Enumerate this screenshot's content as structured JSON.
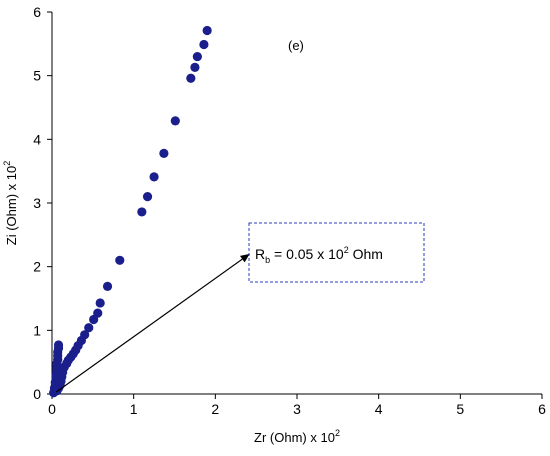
{
  "chart_data": {
    "type": "scatter",
    "panel_label": "(e)",
    "xlabel": {
      "text": "Zr (Ohm) x 10",
      "sup": "2"
    },
    "ylabel": {
      "text": "Zi (Ohm) x 10",
      "sup": "2"
    },
    "xlim": [
      0,
      6
    ],
    "ylim": [
      0,
      6
    ],
    "xticks": [
      "0",
      "1",
      "2",
      "3",
      "4",
      "5",
      "6"
    ],
    "yticks": [
      "0",
      "1",
      "2",
      "3",
      "4",
      "5",
      "6"
    ],
    "grid": false,
    "marker_color": "#1a1f8c",
    "annotation": {
      "main": "R",
      "sub": "b",
      "mid": " = 0.05 x 10",
      "sup": "2",
      "tail": " Ohm",
      "arrow_from": [
        0.05,
        0.03
      ],
      "arrow_to": [
        2.42,
        2.2
      ],
      "box_color": "#2b3fbf"
    },
    "series": [
      {
        "points": [
          [
            0.02,
            0.02
          ],
          [
            0.03,
            0.05
          ],
          [
            0.03,
            0.09
          ],
          [
            0.04,
            0.13
          ],
          [
            0.04,
            0.18
          ],
          [
            0.05,
            0.24
          ],
          [
            0.05,
            0.3
          ],
          [
            0.06,
            0.36
          ],
          [
            0.06,
            0.42
          ],
          [
            0.06,
            0.48
          ],
          [
            0.07,
            0.54
          ],
          [
            0.07,
            0.6
          ],
          [
            0.07,
            0.66
          ],
          [
            0.08,
            0.72
          ],
          [
            0.08,
            0.77
          ],
          [
            0.06,
            0.05
          ],
          [
            0.08,
            0.09
          ],
          [
            0.1,
            0.14
          ],
          [
            0.11,
            0.2
          ],
          [
            0.12,
            0.27
          ],
          [
            0.13,
            0.34
          ],
          [
            0.15,
            0.42
          ],
          [
            0.18,
            0.48
          ],
          [
            0.2,
            0.53
          ],
          [
            0.23,
            0.58
          ],
          [
            0.26,
            0.63
          ],
          [
            0.29,
            0.69
          ],
          [
            0.32,
            0.76
          ],
          [
            0.36,
            0.84
          ],
          [
            0.4,
            0.93
          ],
          [
            0.45,
            1.04
          ],
          [
            0.51,
            1.17
          ],
          [
            0.56,
            1.27
          ],
          [
            0.59,
            1.43
          ],
          [
            0.68,
            1.69
          ],
          [
            0.83,
            2.1
          ],
          [
            1.1,
            2.86
          ],
          [
            1.17,
            3.1
          ],
          [
            1.25,
            3.41
          ],
          [
            1.37,
            3.78
          ],
          [
            1.51,
            4.29
          ],
          [
            1.7,
            4.96
          ],
          [
            1.75,
            5.13
          ],
          [
            1.78,
            5.3
          ],
          [
            1.86,
            5.49
          ],
          [
            1.9,
            5.71
          ]
        ]
      }
    ]
  }
}
